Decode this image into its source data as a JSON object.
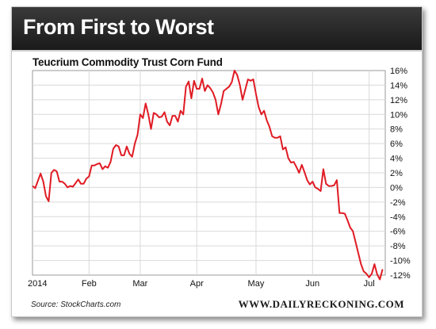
{
  "header": {
    "title": "From First to Worst"
  },
  "footer": {
    "source": "Source: StockCharts.com",
    "site": "WWW.DAILYRECKONING.COM"
  },
  "colors": {
    "line": "#e01b24",
    "banner": "#262626",
    "grid": "#d9d9d9"
  },
  "chart_data": {
    "type": "line",
    "title": "Teucrium Commodity Trust Corn Fund",
    "xlabel": "",
    "ylabel": "",
    "x_ticks": [
      "2014",
      "Feb",
      "Mar",
      "Apr",
      "May",
      "Jun",
      "Jul"
    ],
    "y_ticks": [
      "16%",
      "14%",
      "12%",
      "10%",
      "8%",
      "6%",
      "4%",
      "2%",
      "0%",
      "-2%",
      "-4%",
      "-6%",
      "-8%",
      "-10%",
      "-12%"
    ],
    "ylim": [
      -12,
      16
    ],
    "y_unit": "%",
    "grid": true,
    "x_range": [
      0,
      131
    ],
    "series": [
      {
        "x": [
          0,
          1,
          3,
          4,
          5,
          6,
          7,
          8,
          9,
          10,
          11,
          12,
          13,
          14,
          15,
          16,
          17,
          18,
          19,
          20,
          21,
          22,
          23,
          24,
          25,
          26,
          27,
          28,
          29,
          30,
          31,
          32,
          33,
          34,
          35,
          36,
          37,
          38,
          39,
          40,
          41,
          42,
          43,
          44,
          45,
          46,
          47,
          48,
          49,
          50,
          51,
          52,
          53,
          54,
          55,
          56,
          57,
          58,
          59,
          60,
          61,
          62,
          63,
          64,
          65,
          66,
          67,
          68,
          69,
          70,
          71,
          72,
          73,
          74,
          75,
          76,
          77,
          78,
          79,
          80,
          81,
          82,
          83,
          84,
          85,
          86,
          87,
          88,
          89,
          90,
          91,
          92,
          93,
          94,
          95,
          96,
          97,
          98,
          99,
          100,
          101,
          102,
          103,
          104,
          105,
          106,
          107,
          108,
          109,
          110,
          111,
          112,
          113,
          114,
          115,
          116,
          117,
          118,
          119,
          120,
          121,
          122,
          123,
          124,
          125,
          126,
          127,
          128,
          129,
          130
        ],
        "values": [
          0.2,
          -0.1,
          1.9,
          0.8,
          -1.2,
          -1.9,
          2.0,
          2.4,
          2.2,
          0.8,
          0.8,
          0.5,
          0.0,
          0.2,
          0.1,
          0.6,
          1.1,
          0.5,
          0.5,
          1.2,
          1.5,
          3.0,
          3.0,
          3.2,
          3.3,
          2.5,
          2.9,
          2.7,
          3.5,
          5.3,
          5.8,
          5.6,
          4.4,
          4.4,
          5.6,
          4.6,
          4.2,
          6.0,
          7.2,
          10.0,
          9.5,
          11.5,
          10.0,
          8.0,
          10.2,
          10.0,
          9.6,
          9.7,
          10.3,
          9.0,
          8.5,
          9.8,
          9.8,
          9.0,
          10.5,
          10.0,
          13.8,
          14.5,
          12.2,
          14.6,
          13.5,
          13.5,
          14.9,
          13.2,
          14.0,
          13.6,
          13.0,
          12.0,
          10.0,
          11.4,
          13.2,
          13.5,
          13.8,
          14.4,
          16.0,
          15.4,
          14.0,
          12.0,
          13.4,
          14.8,
          14.6,
          14.8,
          12.8,
          11.0,
          10.0,
          10.5,
          9.2,
          8.3,
          7.0,
          6.8,
          6.8,
          7.0,
          5.2,
          5.5,
          4.0,
          3.4,
          3.5,
          2.8,
          2.0,
          3.1,
          2.1,
          1.0,
          0.4,
          0.8,
          0.0,
          -0.2,
          -0.5,
          2.5,
          0.5,
          0.2,
          0.2,
          0.3,
          1.0,
          -3.5,
          -3.5,
          -3.6,
          -4.5,
          -5.5,
          -6.0,
          -7.5,
          -9.0,
          -10.5,
          -11.5,
          -11.8,
          -12.3,
          -11.8,
          -10.5,
          -11.9,
          -12.6,
          -11.2
        ]
      }
    ]
  }
}
